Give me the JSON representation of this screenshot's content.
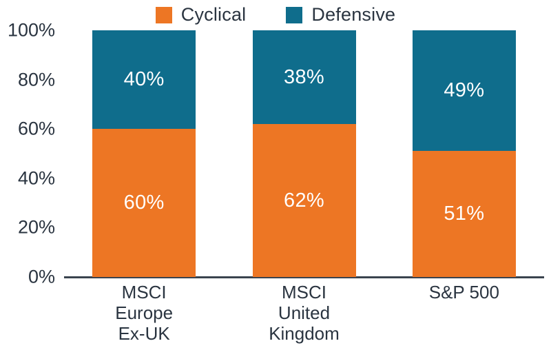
{
  "chart_data": {
    "type": "bar",
    "stacked": true,
    "title": "",
    "categories": [
      "MSCI\nEurope\nEx-UK",
      "MSCI\nUnited\nKingdom",
      "S&P 500"
    ],
    "series": [
      {
        "name": "Cyclical",
        "color": "#ED7624",
        "values": [
          60,
          62,
          51
        ],
        "value_labels": [
          "60%",
          "62%",
          "51%"
        ]
      },
      {
        "name": "Defensive",
        "color": "#0F6D8C",
        "values": [
          40,
          38,
          49
        ],
        "value_labels": [
          "40%",
          "38%",
          "49%"
        ]
      }
    ],
    "ylim": [
      0,
      100
    ],
    "yticks": [
      {
        "label": "100%",
        "value": 100
      },
      {
        "label": "80%",
        "value": 80
      },
      {
        "label": "60%",
        "value": 60
      },
      {
        "label": "40%",
        "value": 40
      },
      {
        "label": "20%",
        "value": 20
      },
      {
        "label": "0%",
        "value": 0
      }
    ],
    "grid": false,
    "legend_position": "top",
    "bar_value_text_color": "#FFFFFF",
    "axis_text_color": "#2A3440",
    "axis_line_color": "#3A434E"
  }
}
